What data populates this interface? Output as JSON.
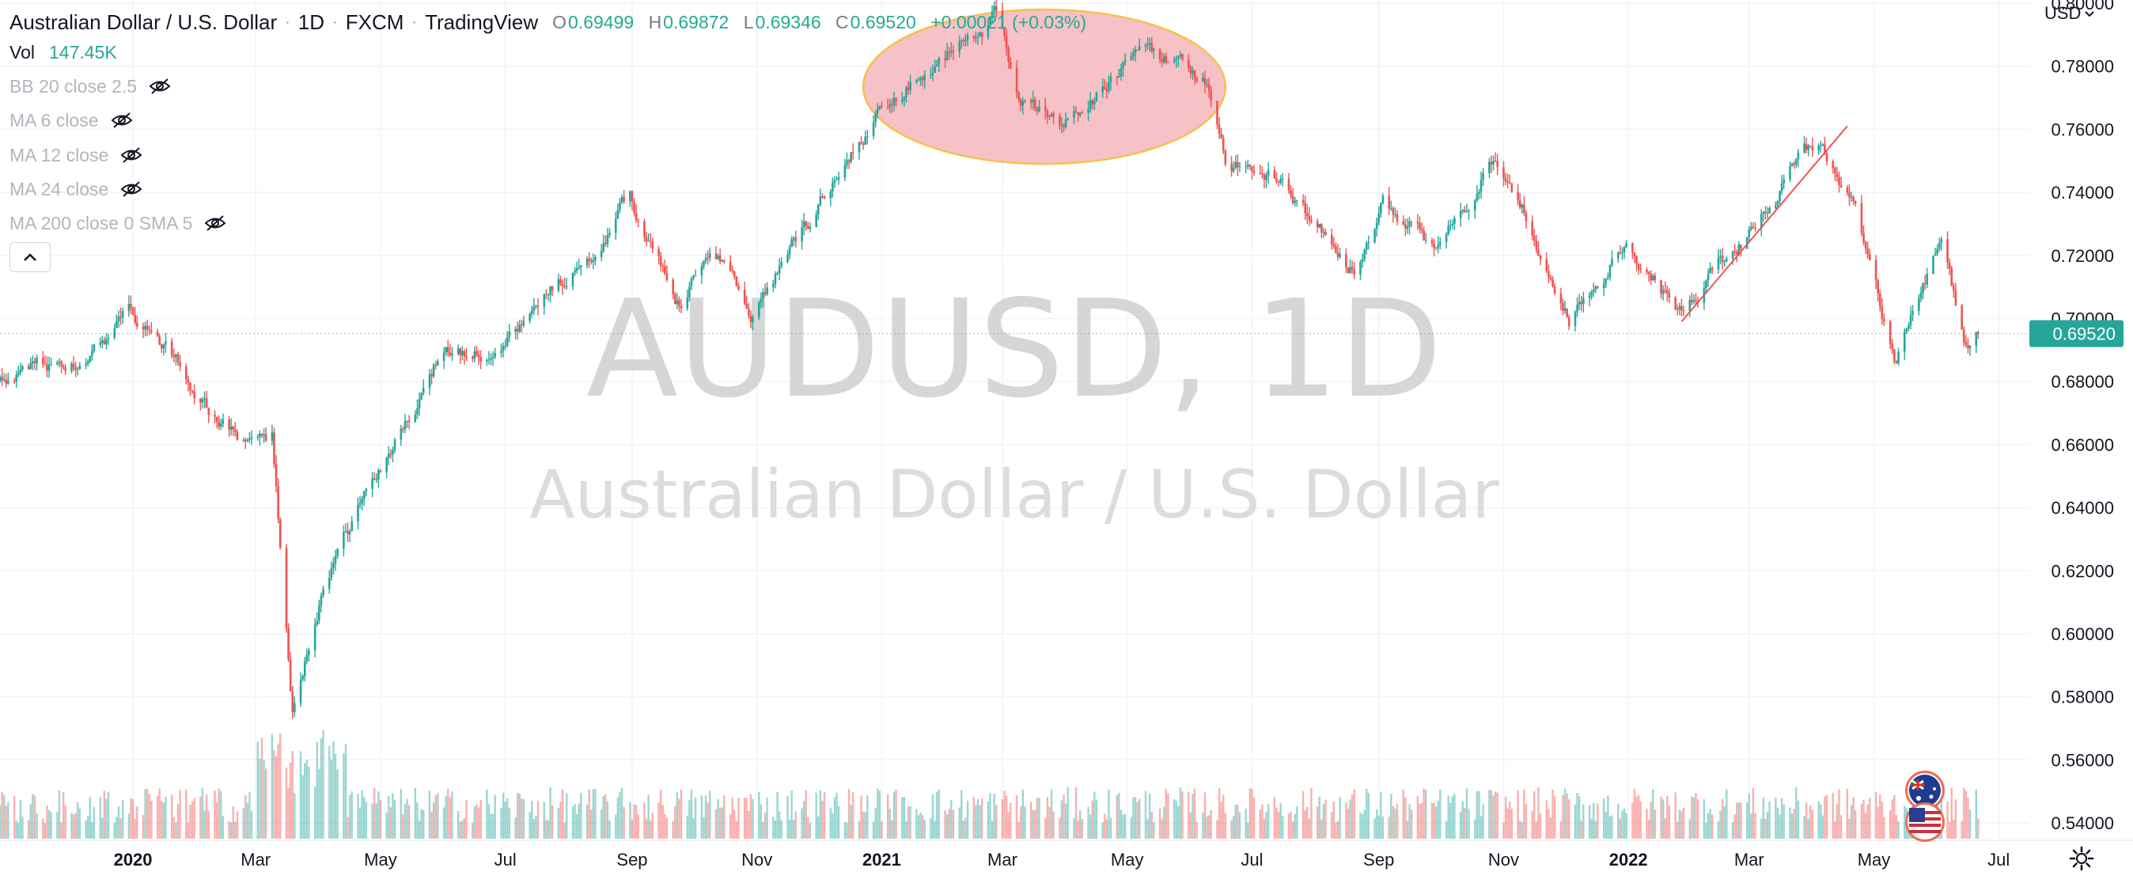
{
  "header": {
    "symbol_name": "Australian Dollar / U.S. Dollar",
    "interval": "1D",
    "broker": "FXCM",
    "platform": "TradingView",
    "ohlc": {
      "open_label": "O",
      "open": "0.69499",
      "high_label": "H",
      "high": "0.69872",
      "low_label": "L",
      "low": "0.69346",
      "close_label": "C",
      "close": "0.69520",
      "change": "+0.00021 (+0.03%)"
    }
  },
  "indicators": [
    {
      "label": "Vol",
      "value": "147.45K"
    },
    {
      "label": "BB 20 close 2.5"
    },
    {
      "label": "MA 6 close"
    },
    {
      "label": "MA 12 close"
    },
    {
      "label": "MA 24 close"
    },
    {
      "label": "MA 200 close 0 SMA 5"
    }
  ],
  "currency_selector": "USD",
  "watermark": {
    "ticker": "AUDUSD, 1D",
    "name": "Australian Dollar / U.S. Dollar"
  },
  "colors": {
    "up": "#26a69a",
    "down": "#ef5350",
    "ellipse_fill": "#f4b6bd",
    "ellipse_stroke": "#f5c24a",
    "trendline": "#ef5350"
  },
  "chart_data": {
    "type": "candlestick",
    "title": "Australian Dollar / U.S. Dollar",
    "y_axis": {
      "ticks": [
        "0.80000",
        "0.78000",
        "0.76000",
        "0.74000",
        "0.72000",
        "0.70000",
        "0.68000",
        "0.66000",
        "0.64000",
        "0.62000",
        "0.60000",
        "0.58000",
        "0.56000",
        "0.54000"
      ],
      "ylim": [
        0.535,
        0.801
      ],
      "position": "right"
    },
    "x_axis": {
      "ticks": [
        {
          "label": "2020",
          "date": "2020-01-01",
          "bold": true
        },
        {
          "label": "Mar",
          "date": "2020-03-01"
        },
        {
          "label": "May",
          "date": "2020-05-01"
        },
        {
          "label": "Jul",
          "date": "2020-07-01"
        },
        {
          "label": "Sep",
          "date": "2020-09-01"
        },
        {
          "label": "Nov",
          "date": "2020-11-01"
        },
        {
          "label": "2021",
          "date": "2021-01-01",
          "bold": true
        },
        {
          "label": "Mar",
          "date": "2021-03-01"
        },
        {
          "label": "May",
          "date": "2021-05-01"
        },
        {
          "label": "Jul",
          "date": "2021-07-01"
        },
        {
          "label": "Sep",
          "date": "2021-09-01"
        },
        {
          "label": "Nov",
          "date": "2021-11-01"
        },
        {
          "label": "2022",
          "date": "2022-01-01",
          "bold": true
        },
        {
          "label": "Mar",
          "date": "2022-03-01"
        },
        {
          "label": "May",
          "date": "2022-05-01"
        },
        {
          "label": "Jul",
          "date": "2022-07-01"
        }
      ],
      "xlim": [
        "2019-10-28",
        "2022-07-16"
      ]
    },
    "price_path": [
      {
        "date": "2019-10-28",
        "value": 0.68
      },
      {
        "date": "2019-11-10",
        "value": 0.686
      },
      {
        "date": "2019-11-30",
        "value": 0.682
      },
      {
        "date": "2019-12-31",
        "value": 0.702
      },
      {
        "date": "2020-01-20",
        "value": 0.688
      },
      {
        "date": "2020-02-10",
        "value": 0.67
      },
      {
        "date": "2020-02-27",
        "value": 0.66
      },
      {
        "date": "2020-03-09",
        "value": 0.662
      },
      {
        "date": "2020-03-19",
        "value": 0.575
      },
      {
        "date": "2020-04-01",
        "value": 0.61
      },
      {
        "date": "2020-04-30",
        "value": 0.65
      },
      {
        "date": "2020-05-31",
        "value": 0.69
      },
      {
        "date": "2020-06-30",
        "value": 0.69
      },
      {
        "date": "2020-07-31",
        "value": 0.715
      },
      {
        "date": "2020-08-31",
        "value": 0.737
      },
      {
        "date": "2020-09-25",
        "value": 0.704
      },
      {
        "date": "2020-10-10",
        "value": 0.724
      },
      {
        "date": "2020-10-30",
        "value": 0.703
      },
      {
        "date": "2020-11-30",
        "value": 0.735
      },
      {
        "date": "2020-12-31",
        "value": 0.769
      },
      {
        "date": "2021-01-15",
        "value": 0.775
      },
      {
        "date": "2021-02-25",
        "value": 0.795
      },
      {
        "date": "2021-03-10",
        "value": 0.77
      },
      {
        "date": "2021-03-31",
        "value": 0.76
      },
      {
        "date": "2021-05-10",
        "value": 0.785
      },
      {
        "date": "2021-06-10",
        "value": 0.775
      },
      {
        "date": "2021-06-18",
        "value": 0.75
      },
      {
        "date": "2021-07-10",
        "value": 0.745
      },
      {
        "date": "2021-08-20",
        "value": 0.715
      },
      {
        "date": "2021-09-03",
        "value": 0.74
      },
      {
        "date": "2021-09-30",
        "value": 0.72
      },
      {
        "date": "2021-10-28",
        "value": 0.753
      },
      {
        "date": "2021-11-25",
        "value": 0.715
      },
      {
        "date": "2021-12-03",
        "value": 0.702
      },
      {
        "date": "2021-12-31",
        "value": 0.726
      },
      {
        "date": "2022-01-27",
        "value": 0.702
      },
      {
        "date": "2022-02-28",
        "value": 0.726
      },
      {
        "date": "2022-04-04",
        "value": 0.757
      },
      {
        "date": "2022-04-20",
        "value": 0.74
      },
      {
        "date": "2022-05-12",
        "value": 0.686
      },
      {
        "date": "2022-06-03",
        "value": 0.722
      },
      {
        "date": "2022-06-14",
        "value": 0.69
      },
      {
        "date": "2022-06-21",
        "value": 0.6952
      }
    ],
    "last_price": {
      "label": "0.69520",
      "value": 0.6952
    },
    "annotations": [
      {
        "type": "ellipse",
        "from": "2020-12-23",
        "to": "2021-06-18",
        "y_top": 0.798,
        "y_bottom": 0.749
      },
      {
        "type": "trendline",
        "from": {
          "date": "2022-01-27",
          "value": 0.699
        },
        "to": {
          "date": "2022-04-18",
          "value": 0.761
        }
      }
    ],
    "volume": {
      "visible": true,
      "position": "bottom overlay"
    },
    "grid": true
  }
}
